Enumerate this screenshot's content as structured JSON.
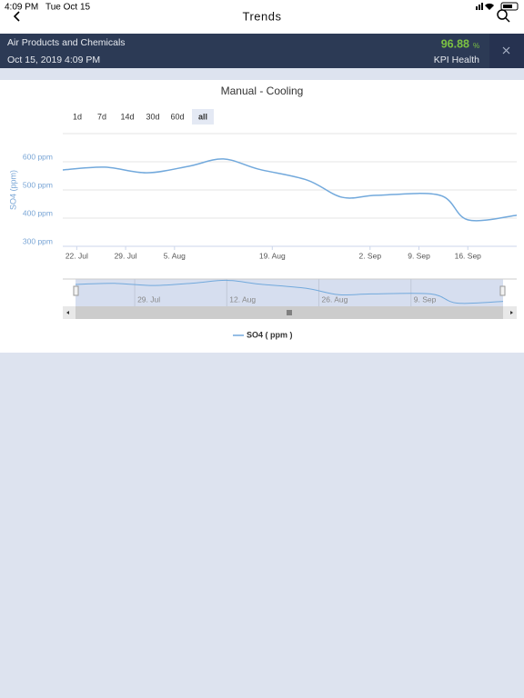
{
  "status_bar": {
    "time": "4:09 PM",
    "date": "Tue Oct 15"
  },
  "nav": {
    "title": "Trends"
  },
  "header": {
    "company": "Air Products and Chemicals",
    "timestamp": "Oct 15, 2019 4:09 PM",
    "kpi_value": "96.88",
    "kpi_unit": "%",
    "kpi_label": "KPI Health"
  },
  "range_buttons": [
    "1d",
    "7d",
    "14d",
    "30d",
    "60d",
    "all"
  ],
  "selected_range": 5,
  "chart_data": {
    "type": "line",
    "title": "Manual - Cooling",
    "y_label": "SO4 (ppm)",
    "x": [
      "07-20",
      "07-26",
      "08-01",
      "08-07",
      "08-12",
      "08-17",
      "08-24",
      "08-29",
      "09-03",
      "09-12",
      "09-16",
      "09-23"
    ],
    "series": [
      {
        "name": "SO4 ( ppm )",
        "color": "#72a9dc",
        "values": [
          571,
          581,
          561,
          584,
          610,
          574,
          535,
          474,
          481,
          481,
          394,
          410
        ]
      }
    ],
    "xlim": [
      "07-20",
      "09-23"
    ],
    "xticks": [
      {
        "value": "07-22",
        "label": "22. Jul"
      },
      {
        "value": "07-29",
        "label": "29. Jul"
      },
      {
        "value": "08-05",
        "label": "5. Aug"
      },
      {
        "value": "08-19",
        "label": "19. Aug"
      },
      {
        "value": "09-02",
        "label": "2. Sep"
      },
      {
        "value": "09-09",
        "label": "9. Sep"
      },
      {
        "value": "09-16",
        "label": "16. Sep"
      }
    ],
    "ylim": [
      300,
      700
    ],
    "yticks": [
      {
        "value": 300,
        "label": "300 ppm"
      },
      {
        "value": 400,
        "label": "400 ppm"
      },
      {
        "value": 500,
        "label": "500 ppm"
      },
      {
        "value": 600,
        "label": "600 ppm"
      }
    ],
    "grid": true,
    "navigator_xticks": [
      {
        "value": "07-29",
        "label": "29. Jul"
      },
      {
        "value": "08-12",
        "label": "12. Aug"
      },
      {
        "value": "08-26",
        "label": "26. Aug"
      },
      {
        "value": "09-09",
        "label": "9. Sep"
      }
    ],
    "legend": "bottom"
  }
}
